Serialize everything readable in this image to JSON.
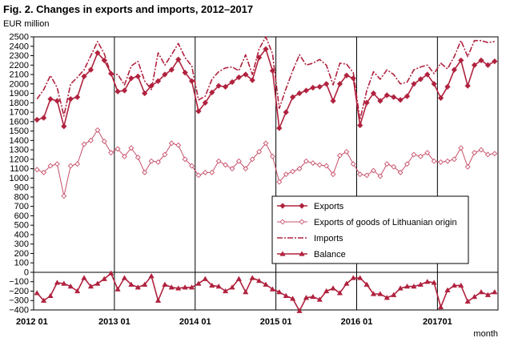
{
  "title": "Fig. 2. Changes in exports and imports, 2012–2017",
  "unit": "EUR million",
  "xaxis_label": "month",
  "colors": {
    "dark_red": "#b0223e",
    "light_red": "#c8506a",
    "grid": "#000000"
  },
  "chart_data": {
    "type": "line",
    "title": "Fig. 2. Changes in exports and imports, 2012–2017",
    "ylabel": "EUR million",
    "xlabel": "month",
    "ylim": [
      -400,
      2500
    ],
    "ytick_step": 100,
    "x_start": "2012-01",
    "x_count": 69,
    "x_tick_labels": [
      "2012 01",
      "2013 01",
      "2014 01",
      "2015 01",
      "2016 01",
      "201701"
    ],
    "x_tick_positions": [
      0,
      12,
      24,
      36,
      48,
      60
    ],
    "legend_position": "center-right",
    "series": [
      {
        "name": "Exports",
        "marker": "diamond",
        "dash": "solid",
        "color": "#b0223e",
        "values": [
          1620,
          1640,
          1840,
          1820,
          1550,
          1840,
          1860,
          2080,
          2150,
          2330,
          2250,
          2110,
          1920,
          1930,
          2060,
          2080,
          1900,
          1980,
          2030,
          2100,
          2150,
          2260,
          2120,
          2030,
          1710,
          1800,
          1910,
          1980,
          1970,
          2020,
          2070,
          2100,
          2040,
          2280,
          2370,
          2140,
          1530,
          1700,
          1860,
          1900,
          1930,
          1960,
          1970,
          2000,
          1820,
          2000,
          2090,
          2060,
          1560,
          1800,
          1900,
          1820,
          1880,
          1860,
          1830,
          1870,
          2000,
          2050,
          2100,
          2000,
          1850,
          1970,
          2150,
          2250,
          1980,
          2200,
          2250,
          2200,
          2240
        ]
      },
      {
        "name": "Exports of goods of Lithuanian origin",
        "marker": "diamond-open",
        "dash": "solid",
        "color": "#c8506a",
        "values": [
          1090,
          1060,
          1130,
          1150,
          810,
          1130,
          1150,
          1360,
          1400,
          1510,
          1390,
          1270,
          1310,
          1230,
          1320,
          1220,
          1060,
          1180,
          1170,
          1250,
          1370,
          1350,
          1200,
          1130,
          1030,
          1060,
          1060,
          1180,
          1140,
          1100,
          1180,
          1100,
          1200,
          1280,
          1370,
          1230,
          960,
          1040,
          1070,
          1100,
          1180,
          1160,
          1140,
          1130,
          1040,
          1240,
          1280,
          1150,
          1040,
          1030,
          1080,
          1020,
          1150,
          1120,
          1060,
          1150,
          1250,
          1230,
          1270,
          1180,
          1170,
          1180,
          1200,
          1320,
          1120,
          1270,
          1300,
          1250,
          1260
        ]
      },
      {
        "name": "Imports",
        "marker": "none",
        "dash": "dashdot",
        "color": "#b0223e",
        "values": [
          1840,
          1940,
          2090,
          1960,
          1660,
          2000,
          2070,
          2150,
          2300,
          2450,
          2320,
          2100,
          2100,
          1990,
          2190,
          2240,
          2030,
          1940,
          2330,
          2200,
          2310,
          2430,
          2280,
          2190,
          1830,
          1870,
          2050,
          2130,
          2170,
          2180,
          2140,
          2310,
          2100,
          2370,
          2500,
          2320,
          1740,
          1950,
          2140,
          2310,
          2200,
          2220,
          2260,
          2200,
          1990,
          2220,
          2210,
          2120,
          1620,
          1930,
          2130,
          2050,
          2150,
          2100,
          2000,
          2020,
          2150,
          2180,
          2200,
          2110,
          2220,
          2160,
          2290,
          2460,
          2290,
          2460,
          2460,
          2440,
          2450
        ]
      },
      {
        "name": "Balance",
        "marker": "triangle",
        "dash": "solid",
        "color": "#b0223e",
        "values": [
          -220,
          -300,
          -250,
          -110,
          -120,
          -150,
          -200,
          -60,
          -150,
          -120,
          -70,
          -10,
          -180,
          -60,
          -130,
          -160,
          -130,
          -40,
          -300,
          -130,
          -160,
          -170,
          -160,
          -160,
          -120,
          -70,
          -140,
          -150,
          -200,
          -160,
          -70,
          -210,
          -60,
          -90,
          -130,
          -180,
          -210,
          -250,
          -280,
          -410,
          -270,
          -260,
          -290,
          -200,
          -170,
          -220,
          -120,
          -60,
          -60,
          -130,
          -230,
          -230,
          -270,
          -240,
          -170,
          -150,
          -150,
          -130,
          -100,
          -110,
          -370,
          -190,
          -140,
          -140,
          -310,
          -260,
          -210,
          -240,
          -210
        ]
      }
    ]
  }
}
